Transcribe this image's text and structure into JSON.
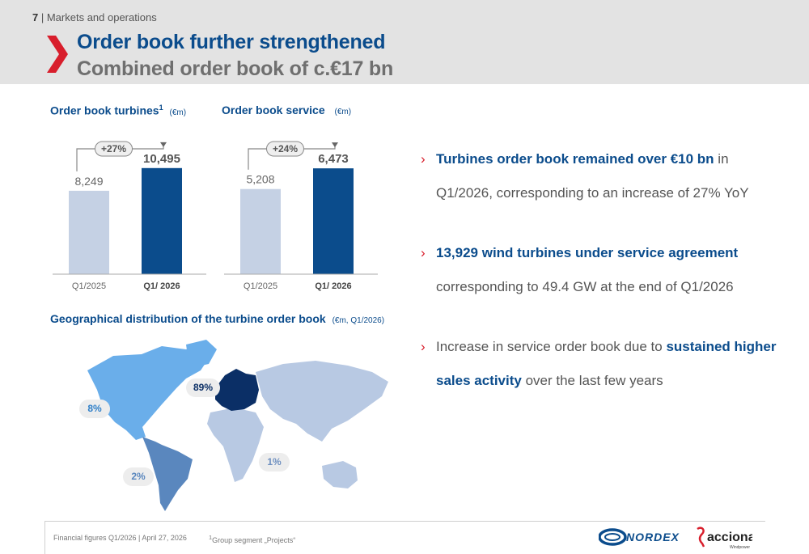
{
  "header": {
    "page_number": "7",
    "section": "| Markets and operations",
    "title": "Order book further strengthened",
    "subtitle": "Combined order book of c.€17 bn"
  },
  "charts": {
    "turbines_caption": "Order book turbines",
    "turbines_sup": "1",
    "turbines_unit": "(€m)",
    "service_caption": "Order book service",
    "service_unit": "(€m)"
  },
  "chart_data": [
    {
      "type": "bar",
      "title": "Order book turbines",
      "categories": [
        "Q1/2025",
        "Q1/ 2026"
      ],
      "values": [
        8249,
        10495
      ],
      "value_labels": [
        "8,249",
        "10,495"
      ],
      "change_label": "+27%",
      "ylim": [
        0,
        12000
      ],
      "colors": [
        "#c5d1e4",
        "#0b4c8c"
      ]
    },
    {
      "type": "bar",
      "title": "Order book service",
      "categories": [
        "Q1/2025",
        "Q1/ 2026"
      ],
      "values": [
        5208,
        6473
      ],
      "value_labels": [
        "5,208",
        "6,473"
      ],
      "change_label": "+24%",
      "ylim": [
        0,
        7420
      ],
      "colors": [
        "#c5d1e4",
        "#0b4c8c"
      ]
    }
  ],
  "bullets": [
    {
      "hl": "Turbines order book remained over €10 bn",
      "rest": " in Q1/2026, corresponding to an increase of 27% YoY"
    },
    {
      "hl": "13,929 wind turbines under service agreement",
      "rest": " corresponding to 49.4 GW at the end of Q1/2026"
    },
    {
      "pre": "Increase in service order book due to ",
      "hl": "sustained higher sales activity",
      "rest": " over the last few years"
    }
  ],
  "geo": {
    "caption": "Geographical distribution of the turbine order book",
    "unit": "(€m, Q1/2026)",
    "europe": "89%",
    "north_america": "8%",
    "latin_america": "2%",
    "rest_of_world": "1%",
    "colors": {
      "europe": "#0b2f66",
      "north_america": "#6aaeea",
      "latin_america": "#5a87be",
      "rest_of_world": "#b8c9e3"
    }
  },
  "footer": {
    "left": "Financial figures Q1/2026 | April 27, 2026",
    "footnote_sup": "1",
    "footnote": "Group segment „Projects“",
    "nordex_logo": "NORDEX",
    "acciona_logo": "acciona",
    "acciona_sub": "Windpower"
  }
}
